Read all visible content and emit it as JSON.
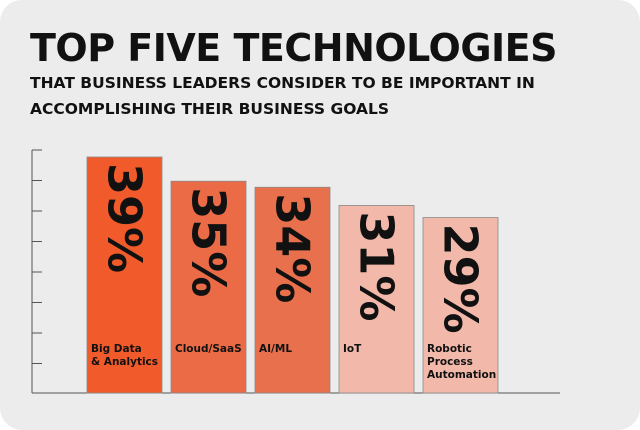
{
  "chart_data": {
    "type": "bar",
    "title": "TOP FIVE TECHNOLOGIES",
    "subtitle": "THAT BUSINESS LEADERS CONSIDER TO BE IMPORTANT IN ACCOMPLISHING THEIR BUSINESS GOALS",
    "categories": [
      [
        "Big Data",
        "& Analytics"
      ],
      [
        "Cloud/SaaS"
      ],
      [
        "AI/ML"
      ],
      [
        "IoT"
      ],
      [
        "Robotic",
        "Process",
        "Automation"
      ]
    ],
    "values": [
      39,
      35,
      34,
      31,
      29
    ],
    "value_labels": [
      "39%",
      "35%",
      "34%",
      "31%",
      "29%"
    ],
    "colors": [
      "#f15a2a",
      "#ea6b45",
      "#e9704c",
      "#f2b9aa",
      "#f2b9aa"
    ],
    "xlabel": "",
    "ylabel": "",
    "ylim": [
      0,
      40
    ],
    "grid": false,
    "legend": "none"
  }
}
